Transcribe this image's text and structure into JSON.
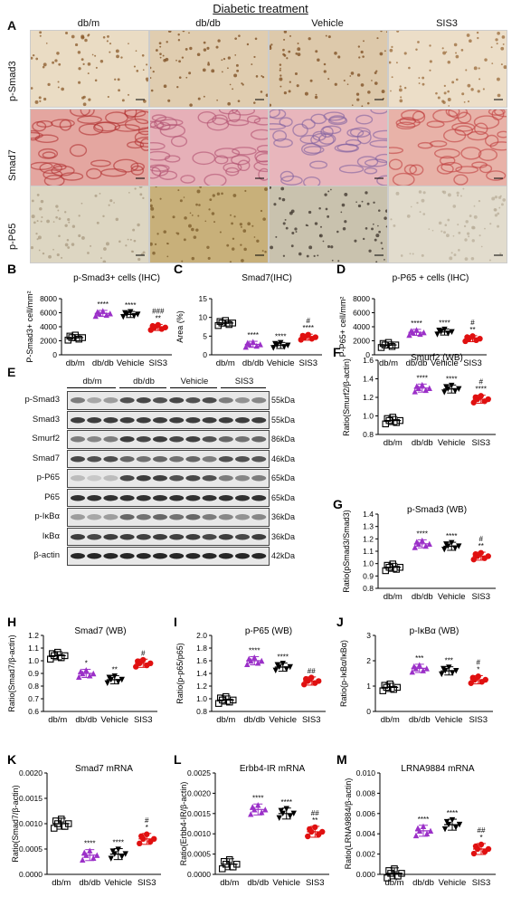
{
  "figure_title": "Diabetic treatment",
  "panel_letters": [
    "A",
    "B",
    "C",
    "D",
    "E",
    "F",
    "G",
    "H",
    "I",
    "J",
    "K",
    "L",
    "M"
  ],
  "micro": {
    "columns": [
      "db/m",
      "db/db",
      "Vehicle",
      "SIS3"
    ],
    "rows": [
      "p-Smad3",
      "Smad7",
      "p-P65"
    ]
  },
  "western": {
    "groups": [
      "db/m",
      "db/db",
      "Vehicle",
      "SIS3"
    ],
    "blots": [
      {
        "name": "p-Smad3",
        "kda": "55kDa"
      },
      {
        "name": "Smad3",
        "kda": "55kDa"
      },
      {
        "name": "Smurf2",
        "kda": "86kDa"
      },
      {
        "name": "Smad7",
        "kda": "46kDa"
      },
      {
        "name": "p-P65",
        "kda": "65kDa"
      },
      {
        "name": "P65",
        "kda": "65kDa"
      },
      {
        "name": "p-IκBα",
        "kda": "36kDa"
      },
      {
        "name": "IκBα",
        "kda": "36kDa"
      },
      {
        "name": "β-actin",
        "kda": "42kDa"
      }
    ]
  },
  "colors": {
    "dbm": "#000000",
    "dbdb": "#9b30c8",
    "vehicle": "#000000",
    "sis3": "#e01010"
  },
  "chart_data": [
    {
      "id": "B",
      "type": "scatter",
      "title": "p-Smad3+ cells (IHC)",
      "ylabel": "P-Smad3+ cell/mm²",
      "ylim": [
        0,
        8000
      ],
      "yticks": [
        "0",
        "2000",
        "4000",
        "6000",
        "8000"
      ],
      "categories": [
        "db/m",
        "db/db",
        "Vehicle",
        "SIS3"
      ],
      "means": [
        2450,
        5900,
        5750,
        3900
      ],
      "sig": [
        "",
        "****",
        "****",
        "###\n**"
      ]
    },
    {
      "id": "C",
      "type": "scatter",
      "title": "Smad7(IHC)",
      "ylabel": "Area (%)",
      "ylim": [
        0,
        15
      ],
      "yticks": [
        "0",
        "5",
        "10",
        "15"
      ],
      "categories": [
        "db/m",
        "db/db",
        "Vehicle",
        "SIS3"
      ],
      "means": [
        8.5,
        2.8,
        2.5,
        4.7
      ],
      "sig": [
        "",
        "****",
        "****",
        "#\n****"
      ]
    },
    {
      "id": "D",
      "type": "scatter",
      "title": "p-P65 + cells (IHC)",
      "ylabel": "P-P65+ cell/mm²",
      "ylim": [
        0,
        8000
      ],
      "yticks": [
        "0",
        "2000",
        "4000",
        "6000",
        "8000"
      ],
      "categories": [
        "db/m",
        "db/db",
        "Vehicle",
        "SIS3"
      ],
      "means": [
        1400,
        3200,
        3250,
        2300
      ],
      "sig": [
        "",
        "****",
        "****",
        "#\n**"
      ]
    },
    {
      "id": "F",
      "type": "scatter",
      "title": "Smurf2 (WB)",
      "ylabel": "Ratio(Smurf2/β-actin)",
      "ylim": [
        0.8,
        1.6
      ],
      "yticks": [
        "0.8",
        "1.0",
        "1.2",
        "1.4",
        "1.6"
      ],
      "categories": [
        "db/m",
        "db/db",
        "Vehicle",
        "SIS3"
      ],
      "means": [
        0.95,
        1.3,
        1.29,
        1.18
      ],
      "sig": [
        "",
        "****",
        "****",
        "#\n****"
      ]
    },
    {
      "id": "G",
      "type": "scatter",
      "title": "p-Smad3 (WB)",
      "ylabel": "Ratio(pSmad3/Smad3)",
      "ylim": [
        0.8,
        1.4
      ],
      "yticks": [
        "0.8",
        "0.9",
        "1.0",
        "1.1",
        "1.2",
        "1.3",
        "1.4"
      ],
      "categories": [
        "db/m",
        "db/db",
        "Vehicle",
        "SIS3"
      ],
      "means": [
        0.97,
        1.16,
        1.14,
        1.06
      ],
      "sig": [
        "",
        "****",
        "****",
        "#\n**"
      ]
    },
    {
      "id": "H",
      "type": "scatter",
      "title": "Smad7 (WB)",
      "ylabel": "Ratio(Smad7/β-actin)",
      "ylim": [
        0.6,
        1.2
      ],
      "yticks": [
        "0.6",
        "0.7",
        "0.8",
        "0.9",
        "1.0",
        "1.1",
        "1.2"
      ],
      "categories": [
        "db/m",
        "db/db",
        "Vehicle",
        "SIS3"
      ],
      "means": [
        1.04,
        0.9,
        0.85,
        0.98
      ],
      "sig": [
        "",
        "*",
        "**",
        "#"
      ]
    },
    {
      "id": "I",
      "type": "scatter",
      "title": "p-P65 (WB)",
      "ylabel": "Ratio(p-p65/p65)",
      "ylim": [
        0.8,
        2.0
      ],
      "yticks": [
        "0.8",
        "1.0",
        "1.2",
        "1.4",
        "1.6",
        "1.8",
        "2.0"
      ],
      "categories": [
        "db/m",
        "db/db",
        "Vehicle",
        "SIS3"
      ],
      "means": [
        0.98,
        1.6,
        1.5,
        1.28
      ],
      "sig": [
        "",
        "****",
        "****",
        "##"
      ]
    },
    {
      "id": "J",
      "type": "scatter",
      "title": "p-IκBα (WB)",
      "ylabel": "Ratio(p-IκBα/IκBα)",
      "ylim": [
        0,
        3
      ],
      "yticks": [
        "0",
        "1",
        "2",
        "3"
      ],
      "categories": [
        "db/m",
        "db/db",
        "Vehicle",
        "SIS3"
      ],
      "means": [
        0.95,
        1.7,
        1.6,
        1.25
      ],
      "sig": [
        "",
        "***",
        "***",
        "#\n*"
      ]
    },
    {
      "id": "K",
      "type": "scatter",
      "title": "Smad7 mRNA",
      "ylabel": "Ratio(Smad7/β-actin)",
      "ylim": [
        0,
        0.002
      ],
      "yticks": [
        "0.0000",
        "0.0005",
        "0.0010",
        "0.0015",
        "0.0020"
      ],
      "categories": [
        "db/m",
        "db/db",
        "Vehicle",
        "SIS3"
      ],
      "means": [
        0.001,
        0.00038,
        0.0004,
        0.0007
      ],
      "sig": [
        "",
        "****",
        "****",
        "#\n*"
      ]
    },
    {
      "id": "L",
      "type": "scatter",
      "title": "Erbb4-IR mRNA",
      "ylabel": "Ratio(Erbb4-IR/β-actin)",
      "ylim": [
        0,
        0.0025
      ],
      "yticks": [
        "0.0000",
        "0.0005",
        "0.0010",
        "0.0015",
        "0.0020",
        "0.0025"
      ],
      "categories": [
        "db/m",
        "db/db",
        "Vehicle",
        "SIS3"
      ],
      "means": [
        0.00025,
        0.0016,
        0.0015,
        0.00105
      ],
      "sig": [
        "",
        "****",
        "****",
        "##\n**"
      ]
    },
    {
      "id": "M",
      "type": "scatter",
      "title": "LRNA9884 mRNA",
      "ylabel": "Ratio(LRNA9884/β-actin)",
      "ylim": [
        0,
        0.01
      ],
      "yticks": [
        "0.000",
        "0.002",
        "0.004",
        "0.006",
        "0.008",
        "0.010"
      ],
      "categories": [
        "db/m",
        "db/db",
        "Vehicle",
        "SIS3"
      ],
      "means": [
        0.0001,
        0.0043,
        0.0049,
        0.0025
      ],
      "sig": [
        "",
        "****",
        "****",
        "##\n*"
      ]
    }
  ]
}
